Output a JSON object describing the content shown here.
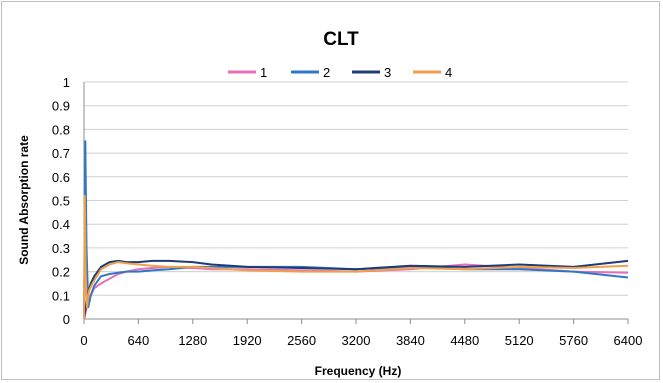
{
  "chart_data": {
    "type": "line",
    "title": "CLT",
    "xlabel": "Frequency  (Hz)",
    "ylabel": "Sound Absorption rate",
    "xlim": [
      0,
      6400
    ],
    "ylim": [
      0,
      1
    ],
    "x_ticks": [
      "0",
      "640",
      "1280",
      "1920",
      "2560",
      "3200",
      "3840",
      "4480",
      "5120",
      "5760",
      "6400"
    ],
    "y_ticks": [
      "0",
      "0.1",
      "0.2",
      "0.3",
      "0.4",
      "0.5",
      "0.6",
      "0.7",
      "0.8",
      "0.9",
      "1"
    ],
    "grid": "horizontal",
    "legend_position": "top",
    "series": [
      {
        "name": "1",
        "color": "#e86fb9",
        "x": [
          0,
          20,
          40,
          80,
          120,
          200,
          300,
          400,
          500,
          640,
          800,
          1000,
          1280,
          1500,
          1920,
          2560,
          3200,
          3840,
          4480,
          5120,
          5760,
          6400
        ],
        "y": [
          0.0,
          0.03,
          0.06,
          0.1,
          0.13,
          0.15,
          0.17,
          0.19,
          0.2,
          0.21,
          0.215,
          0.22,
          0.215,
          0.21,
          0.21,
          0.205,
          0.2,
          0.21,
          0.23,
          0.215,
          0.2,
          0.195
        ]
      },
      {
        "name": "2",
        "color": "#2f78c4",
        "x": [
          0,
          15,
          30,
          50,
          80,
          120,
          200,
          300,
          400,
          500,
          640,
          800,
          1000,
          1280,
          1920,
          2560,
          3200,
          3840,
          4480,
          5120,
          5760,
          6400
        ],
        "y": [
          0.0,
          0.75,
          0.3,
          0.05,
          0.1,
          0.14,
          0.18,
          0.19,
          0.195,
          0.2,
          0.2,
          0.205,
          0.21,
          0.22,
          0.22,
          0.22,
          0.21,
          0.22,
          0.21,
          0.21,
          0.2,
          0.175
        ]
      },
      {
        "name": "3",
        "color": "#1f3b73",
        "x": [
          0,
          20,
          40,
          80,
          120,
          200,
          300,
          400,
          500,
          640,
          800,
          1000,
          1280,
          1500,
          1920,
          2560,
          3200,
          3840,
          4480,
          5120,
          5760,
          6400
        ],
        "y": [
          0.0,
          0.05,
          0.1,
          0.15,
          0.18,
          0.22,
          0.24,
          0.245,
          0.24,
          0.24,
          0.245,
          0.245,
          0.24,
          0.23,
          0.22,
          0.215,
          0.21,
          0.225,
          0.22,
          0.23,
          0.22,
          0.245
        ]
      },
      {
        "name": "4",
        "color": "#f0a04b",
        "x": [
          0,
          10,
          20,
          35,
          60,
          100,
          150,
          200,
          300,
          400,
          500,
          640,
          800,
          1000,
          1280,
          1920,
          2560,
          3200,
          3840,
          4480,
          5120,
          5760,
          6400
        ],
        "y": [
          0.0,
          0.52,
          0.18,
          0.05,
          0.12,
          0.15,
          0.18,
          0.21,
          0.23,
          0.24,
          0.235,
          0.23,
          0.225,
          0.22,
          0.22,
          0.205,
          0.2,
          0.2,
          0.215,
          0.21,
          0.22,
          0.215,
          0.225
        ]
      }
    ]
  }
}
